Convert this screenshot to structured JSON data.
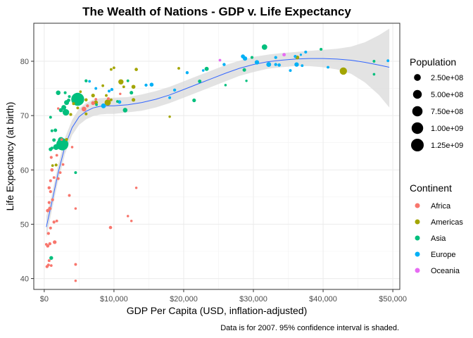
{
  "chart_data": {
    "type": "scatter",
    "title": "The Wealth of Nations - GDP v. Life Expectancy",
    "xlabel": "GDP Per Capita (USD, inflation-adjusted)",
    "ylabel": "Life Expectancy (at birth)",
    "caption": "Data is for 2007. 95% confidence interval is shaded.",
    "xlim": [
      -1500,
      51000
    ],
    "ylim": [
      38,
      87
    ],
    "x_ticks": [
      0,
      10000,
      20000,
      30000,
      40000,
      50000
    ],
    "x_tick_labels": [
      "$0",
      "$10,000",
      "$20,000",
      "$30,000",
      "$40,000",
      "$50,000"
    ],
    "y_ticks": [
      40,
      50,
      60,
      70,
      80
    ],
    "y_tick_labels": [
      "40",
      "50",
      "60",
      "70",
      "80"
    ],
    "grid": true,
    "legend_position": "right",
    "size_legend": {
      "title": "Population",
      "entries": [
        {
          "label": "2.50e+08",
          "value": 250000000
        },
        {
          "label": "5.00e+08",
          "value": 500000000
        },
        {
          "label": "7.50e+08",
          "value": 750000000
        },
        {
          "label": "1.00e+09",
          "value": 1000000000
        },
        {
          "label": "1.25e+09",
          "value": 1250000000
        }
      ]
    },
    "color_legend": {
      "title": "Continent",
      "entries": [
        {
          "label": "Africa",
          "color": "#F8766D"
        },
        {
          "label": "Americas",
          "color": "#A3A500"
        },
        {
          "label": "Asia",
          "color": "#00BF7D"
        },
        {
          "label": "Europe",
          "color": "#00B0F6"
        },
        {
          "label": "Oceania",
          "color": "#E76BF3"
        }
      ]
    },
    "smooth": {
      "color": "#3366FF",
      "band_color": "#D9D9D9",
      "x": [
        300,
        1000,
        2000,
        3000,
        4000,
        5000,
        6000,
        7000,
        8000,
        9000,
        10000,
        12000,
        14000,
        16000,
        18000,
        20000,
        22000,
        24000,
        26000,
        28000,
        30000,
        32000,
        34000,
        36000,
        38000,
        40000,
        42000,
        44000,
        46000,
        48000,
        49500
      ],
      "y": [
        49.5,
        53.5,
        59.5,
        64.5,
        67.8,
        69.8,
        70.8,
        71.4,
        71.7,
        71.8,
        71.8,
        72.0,
        72.4,
        73.0,
        73.8,
        74.8,
        75.8,
        76.8,
        77.8,
        78.7,
        79.4,
        79.9,
        80.2,
        80.4,
        80.5,
        80.5,
        80.4,
        80.2,
        79.8,
        79.3,
        78.9
      ],
      "upper": [
        51.5,
        55.0,
        61.0,
        66.0,
        69.2,
        71.3,
        72.3,
        72.9,
        73.2,
        73.3,
        73.3,
        73.4,
        73.9,
        74.5,
        75.3,
        76.3,
        77.3,
        78.3,
        79.3,
        80.1,
        80.8,
        81.2,
        81.5,
        81.7,
        81.9,
        82.1,
        82.3,
        82.7,
        83.5,
        84.8,
        86.0
      ],
      "lower": [
        47.5,
        52.0,
        58.0,
        63.0,
        66.4,
        68.3,
        69.3,
        69.9,
        70.2,
        70.3,
        70.3,
        70.6,
        70.9,
        71.5,
        72.3,
        73.3,
        74.3,
        75.3,
        76.3,
        77.3,
        78.0,
        78.6,
        78.9,
        79.1,
        79.1,
        78.9,
        78.5,
        77.7,
        76.1,
        73.8,
        71.5
      ]
    },
    "points": [
      {
        "x": 400,
        "y": 42.2,
        "pop": 10000000,
        "continent": "Africa"
      },
      {
        "x": 600,
        "y": 42.5,
        "pop": 8000000,
        "continent": "Africa"
      },
      {
        "x": 700,
        "y": 43.3,
        "pop": 6000000,
        "continent": "Africa"
      },
      {
        "x": 1000,
        "y": 42.4,
        "pop": 3000000,
        "continent": "Africa"
      },
      {
        "x": 300,
        "y": 46.3,
        "pop": 4000000,
        "continent": "Africa"
      },
      {
        "x": 500,
        "y": 46.0,
        "pop": 15000000,
        "continent": "Africa"
      },
      {
        "x": 800,
        "y": 46.4,
        "pop": 12000000,
        "continent": "Africa"
      },
      {
        "x": 1500,
        "y": 46.7,
        "pop": 30000000,
        "continent": "Africa"
      },
      {
        "x": 4500,
        "y": 42.6,
        "pop": 5000000,
        "continent": "Africa"
      },
      {
        "x": 4500,
        "y": 39.6,
        "pop": 1500000,
        "continent": "Africa"
      },
      {
        "x": 600,
        "y": 48.3,
        "pop": 10000000,
        "continent": "Africa"
      },
      {
        "x": 900,
        "y": 49.3,
        "pop": 8000000,
        "continent": "Africa"
      },
      {
        "x": 1400,
        "y": 50.4,
        "pop": 10000000,
        "continent": "Africa"
      },
      {
        "x": 1800,
        "y": 50.6,
        "pop": 4000000,
        "continent": "Africa"
      },
      {
        "x": 9500,
        "y": 49.4,
        "pop": 15000000,
        "continent": "Africa"
      },
      {
        "x": 12500,
        "y": 50.6,
        "pop": 1500000,
        "continent": "Africa"
      },
      {
        "x": 12000,
        "y": 51.5,
        "pop": 1500000,
        "continent": "Africa"
      },
      {
        "x": 4500,
        "y": 52.9,
        "pop": 1500000,
        "continent": "Africa"
      },
      {
        "x": 500,
        "y": 52.5,
        "pop": 20000000,
        "continent": "Africa"
      },
      {
        "x": 800,
        "y": 52.9,
        "pop": 20000000,
        "continent": "Africa"
      },
      {
        "x": 700,
        "y": 54.0,
        "pop": 8000000,
        "continent": "Africa"
      },
      {
        "x": 1200,
        "y": 54.5,
        "pop": 6000000,
        "continent": "Africa"
      },
      {
        "x": 3600,
        "y": 55.3,
        "pop": 5000000,
        "continent": "Africa"
      },
      {
        "x": 900,
        "y": 56.0,
        "pop": 8000000,
        "continent": "Africa"
      },
      {
        "x": 13200,
        "y": 56.7,
        "pop": 1500000,
        "continent": "Africa"
      },
      {
        "x": 700,
        "y": 56.7,
        "pop": 12000000,
        "continent": "Africa"
      },
      {
        "x": 900,
        "y": 58.0,
        "pop": 6000000,
        "continent": "Africa"
      },
      {
        "x": 1400,
        "y": 58.6,
        "pop": 3000000,
        "continent": "Africa"
      },
      {
        "x": 2000,
        "y": 58.4,
        "pop": 6000000,
        "continent": "Africa"
      },
      {
        "x": 2300,
        "y": 59.5,
        "pop": 3000000,
        "continent": "Africa"
      },
      {
        "x": 1100,
        "y": 60.0,
        "pop": 18000000,
        "continent": "Africa"
      },
      {
        "x": 2700,
        "y": 61.0,
        "pop": 3000000,
        "continent": "Africa"
      },
      {
        "x": 1800,
        "y": 62.7,
        "pop": 4000000,
        "continent": "Africa"
      },
      {
        "x": 1000,
        "y": 62.3,
        "pop": 8000000,
        "continent": "Africa"
      },
      {
        "x": 4000,
        "y": 64.2,
        "pop": 2000000,
        "continent": "Africa"
      },
      {
        "x": 2500,
        "y": 65.6,
        "pop": 3000000,
        "continent": "Africa"
      },
      {
        "x": 5700,
        "y": 71.2,
        "pop": 80000000,
        "continent": "Africa"
      },
      {
        "x": 7000,
        "y": 72.3,
        "pop": 33000000,
        "continent": "Africa"
      },
      {
        "x": 6200,
        "y": 71.8,
        "pop": 10000000,
        "continent": "Africa"
      },
      {
        "x": 10900,
        "y": 74.0,
        "pop": 1200000,
        "continent": "Africa"
      },
      {
        "x": 9200,
        "y": 73.1,
        "pop": 6000000,
        "continent": "Africa"
      },
      {
        "x": 7400,
        "y": 73.0,
        "pop": 4000000,
        "continent": "Africa"
      },
      {
        "x": 2000,
        "y": 71.3,
        "pop": 1000000,
        "continent": "Africa"
      },
      {
        "x": 1700,
        "y": 60.9,
        "pop": 8000000,
        "continent": "Americas"
      },
      {
        "x": 1200,
        "y": 60.8,
        "pop": 3000000,
        "continent": "Americas"
      },
      {
        "x": 3200,
        "y": 65.6,
        "pop": 9000000,
        "continent": "Americas"
      },
      {
        "x": 3800,
        "y": 70.2,
        "pop": 7000000,
        "continent": "Americas"
      },
      {
        "x": 4200,
        "y": 72.2,
        "pop": 6000000,
        "continent": "Americas"
      },
      {
        "x": 4800,
        "y": 71.4,
        "pop": 5000000,
        "continent": "Americas"
      },
      {
        "x": 6000,
        "y": 70.3,
        "pop": 6000000,
        "continent": "Americas"
      },
      {
        "x": 6000,
        "y": 72.9,
        "pop": 13000000,
        "continent": "Americas"
      },
      {
        "x": 7000,
        "y": 73.7,
        "pop": 28000000,
        "continent": "Americas"
      },
      {
        "x": 7400,
        "y": 72.4,
        "pop": 45000000,
        "continent": "Americas"
      },
      {
        "x": 9100,
        "y": 72.4,
        "pop": 190000000,
        "continent": "Americas"
      },
      {
        "x": 11000,
        "y": 76.2,
        "pop": 108000000,
        "continent": "Americas"
      },
      {
        "x": 11400,
        "y": 75.3,
        "pop": 4000000,
        "continent": "Americas"
      },
      {
        "x": 12800,
        "y": 75.3,
        "pop": 40000000,
        "continent": "Americas"
      },
      {
        "x": 13200,
        "y": 78.5,
        "pop": 16000000,
        "continent": "Americas"
      },
      {
        "x": 9600,
        "y": 78.5,
        "pop": 4000000,
        "continent": "Americas"
      },
      {
        "x": 10000,
        "y": 78.8,
        "pop": 3500000,
        "continent": "Americas"
      },
      {
        "x": 8900,
        "y": 73.7,
        "pop": 4000000,
        "continent": "Americas"
      },
      {
        "x": 8400,
        "y": 75.5,
        "pop": 3500000,
        "continent": "Americas"
      },
      {
        "x": 5200,
        "y": 74.4,
        "pop": 2000000,
        "continent": "Americas"
      },
      {
        "x": 9600,
        "y": 72.9,
        "pop": 5000000,
        "continent": "Americas"
      },
      {
        "x": 12000,
        "y": 76.4,
        "pop": 3300000,
        "continent": "Americas"
      },
      {
        "x": 12800,
        "y": 72.9,
        "pop": 27000000,
        "continent": "Americas"
      },
      {
        "x": 18000,
        "y": 69.8,
        "pop": 1100000,
        "continent": "Americas"
      },
      {
        "x": 19300,
        "y": 78.7,
        "pop": 4000000,
        "continent": "Americas"
      },
      {
        "x": 36300,
        "y": 80.7,
        "pop": 33000000,
        "continent": "Americas"
      },
      {
        "x": 42900,
        "y": 78.2,
        "pop": 301000000,
        "continent": "Americas"
      },
      {
        "x": 1000,
        "y": 43.8,
        "pop": 31000000,
        "continent": "Asia"
      },
      {
        "x": 900,
        "y": 63.8,
        "pop": 28000000,
        "continent": "Asia"
      },
      {
        "x": 1100,
        "y": 64.0,
        "pop": 10000000,
        "continent": "Asia"
      },
      {
        "x": 1400,
        "y": 65.5,
        "pop": 20000000,
        "continent": "Asia"
      },
      {
        "x": 1700,
        "y": 64.2,
        "pop": 150000000,
        "continent": "Asia"
      },
      {
        "x": 2600,
        "y": 64.7,
        "pop": 1110000000,
        "continent": "Asia"
      },
      {
        "x": 2400,
        "y": 65.5,
        "pop": 169000000,
        "continent": "Asia"
      },
      {
        "x": 4500,
        "y": 59.5,
        "pop": 5000000,
        "continent": "Asia"
      },
      {
        "x": 1600,
        "y": 67.3,
        "pop": 23000000,
        "continent": "Asia"
      },
      {
        "x": 1100,
        "y": 67.2,
        "pop": 5000000,
        "continent": "Asia"
      },
      {
        "x": 900,
        "y": 69.7,
        "pop": 5000000,
        "continent": "Asia"
      },
      {
        "x": 3100,
        "y": 70.6,
        "pop": 223000000,
        "continent": "Asia"
      },
      {
        "x": 2400,
        "y": 71.0,
        "pop": 47000000,
        "continent": "Asia"
      },
      {
        "x": 2800,
        "y": 71.5,
        "pop": 85000000,
        "continent": "Asia"
      },
      {
        "x": 3200,
        "y": 72.4,
        "pop": 91000000,
        "continent": "Asia"
      },
      {
        "x": 3500,
        "y": 72.8,
        "pop": 20000000,
        "continent": "Asia"
      },
      {
        "x": 2000,
        "y": 74.2,
        "pop": 69000000,
        "continent": "Asia"
      },
      {
        "x": 3000,
        "y": 74.2,
        "pop": 6000000,
        "continent": "Asia"
      },
      {
        "x": 3600,
        "y": 73.5,
        "pop": 6000000,
        "continent": "Asia"
      },
      {
        "x": 4800,
        "y": 73.0,
        "pop": 1320000000,
        "continent": "Asia"
      },
      {
        "x": 4500,
        "y": 73.6,
        "pop": 5000000,
        "continent": "Asia"
      },
      {
        "x": 7500,
        "y": 72.0,
        "pop": 3000000,
        "continent": "Asia"
      },
      {
        "x": 11600,
        "y": 71.0,
        "pop": 71000000,
        "continent": "Asia"
      },
      {
        "x": 10500,
        "y": 72.6,
        "pop": 4000000,
        "continent": "Asia"
      },
      {
        "x": 12500,
        "y": 74.2,
        "pop": 24000000,
        "continent": "Asia"
      },
      {
        "x": 6000,
        "y": 76.4,
        "pop": 10000000,
        "continent": "Asia"
      },
      {
        "x": 12000,
        "y": 76.4,
        "pop": 3000000,
        "continent": "Asia"
      },
      {
        "x": 21500,
        "y": 72.8,
        "pop": 27000000,
        "continent": "Asia"
      },
      {
        "x": 22300,
        "y": 76.3,
        "pop": 20000000,
        "continent": "Asia"
      },
      {
        "x": 23300,
        "y": 78.6,
        "pop": 49000000,
        "continent": "Asia"
      },
      {
        "x": 28700,
        "y": 78.4,
        "pop": 23000000,
        "continent": "Asia"
      },
      {
        "x": 29800,
        "y": 80.7,
        "pop": 6500000,
        "continent": "Asia"
      },
      {
        "x": 31600,
        "y": 82.6,
        "pop": 127000000,
        "continent": "Asia"
      },
      {
        "x": 39700,
        "y": 82.2,
        "pop": 7000000,
        "continent": "Asia"
      },
      {
        "x": 47300,
        "y": 80.0,
        "pop": 4500000,
        "continent": "Asia"
      },
      {
        "x": 47300,
        "y": 77.6,
        "pop": 2500000,
        "continent": "Asia"
      },
      {
        "x": 29000,
        "y": 76.4,
        "pop": 1000000,
        "continent": "Asia"
      },
      {
        "x": 26000,
        "y": 75.6,
        "pop": 1500000,
        "continent": "Asia"
      },
      {
        "x": 6500,
        "y": 76.3,
        "pop": 3600000,
        "continent": "Europe"
      },
      {
        "x": 7400,
        "y": 75.0,
        "pop": 4000000,
        "continent": "Europe"
      },
      {
        "x": 8500,
        "y": 71.8,
        "pop": 80000000,
        "continent": "Europe"
      },
      {
        "x": 9700,
        "y": 74.8,
        "pop": 10000000,
        "continent": "Europe"
      },
      {
        "x": 10800,
        "y": 72.5,
        "pop": 22000000,
        "continent": "Europe"
      },
      {
        "x": 9300,
        "y": 74.5,
        "pop": 6000000,
        "continent": "Europe"
      },
      {
        "x": 14600,
        "y": 75.6,
        "pop": 10000000,
        "continent": "Europe"
      },
      {
        "x": 15400,
        "y": 75.7,
        "pop": 38000000,
        "continent": "Europe"
      },
      {
        "x": 18000,
        "y": 73.3,
        "pop": 5000000,
        "continent": "Europe"
      },
      {
        "x": 18700,
        "y": 74.7,
        "pop": 10000000,
        "continent": "Europe"
      },
      {
        "x": 20500,
        "y": 77.9,
        "pop": 10000000,
        "continent": "Europe"
      },
      {
        "x": 22800,
        "y": 78.3,
        "pop": 2000000,
        "continent": "Europe"
      },
      {
        "x": 25800,
        "y": 79.4,
        "pop": 11000000,
        "continent": "Europe"
      },
      {
        "x": 28500,
        "y": 80.9,
        "pop": 40000000,
        "continent": "Europe"
      },
      {
        "x": 28800,
        "y": 80.5,
        "pop": 58000000,
        "continent": "Europe"
      },
      {
        "x": 30500,
        "y": 79.8,
        "pop": 60000000,
        "continent": "Europe"
      },
      {
        "x": 32200,
        "y": 79.4,
        "pop": 82000000,
        "continent": "Europe"
      },
      {
        "x": 33200,
        "y": 79.4,
        "pop": 10000000,
        "continent": "Europe"
      },
      {
        "x": 33700,
        "y": 79.3,
        "pop": 16000000,
        "continent": "Europe"
      },
      {
        "x": 33200,
        "y": 80.7,
        "pop": 9000000,
        "continent": "Europe"
      },
      {
        "x": 35300,
        "y": 78.3,
        "pop": 5000000,
        "continent": "Europe"
      },
      {
        "x": 36000,
        "y": 80.9,
        "pop": 8000000,
        "continent": "Europe"
      },
      {
        "x": 37500,
        "y": 81.7,
        "pop": 7500000,
        "continent": "Europe"
      },
      {
        "x": 36200,
        "y": 79.4,
        "pop": 60000000,
        "continent": "Europe"
      },
      {
        "x": 37000,
        "y": 79.2,
        "pop": 4000000,
        "continent": "Europe"
      },
      {
        "x": 40700,
        "y": 78.9,
        "pop": 4000000,
        "continent": "Europe"
      },
      {
        "x": 36800,
        "y": 81.2,
        "pop": 300000,
        "continent": "Europe"
      },
      {
        "x": 49300,
        "y": 80.1,
        "pop": 4600000,
        "continent": "Europe"
      },
      {
        "x": 25200,
        "y": 80.2,
        "pop": 4000000,
        "continent": "Oceania"
      },
      {
        "x": 34400,
        "y": 81.2,
        "pop": 20000000,
        "continent": "Oceania"
      }
    ]
  }
}
